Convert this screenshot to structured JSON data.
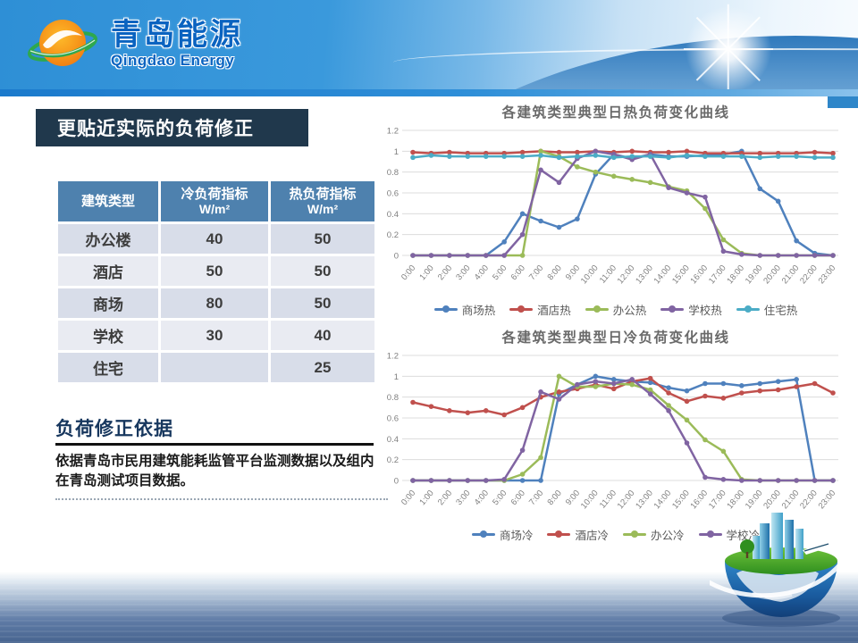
{
  "page_title": "更贴近实际的负荷修正",
  "banner": {
    "logo_title_zh": "青岛能源",
    "logo_title_en": "Qingdao Energy"
  },
  "left": {
    "section_title": "更贴近实际的负荷修正",
    "table": {
      "headers": [
        {
          "label": "建筑类型",
          "unit": ""
        },
        {
          "label": "冷负荷指标",
          "unit": "W/m²"
        },
        {
          "label": "热负荷指标",
          "unit": "W/m²"
        }
      ],
      "rows": [
        [
          "办公楼",
          "40",
          "50"
        ],
        [
          "酒店",
          "50",
          "50"
        ],
        [
          "商场",
          "80",
          "50"
        ],
        [
          "学校",
          "30",
          "40"
        ],
        [
          "住宅",
          "",
          "25"
        ]
      ]
    },
    "basis": {
      "heading": "负荷修正依据",
      "body": "依据青岛市民用建筑能耗监管平台监测数据以及组内在青岛测试项目数据。"
    }
  },
  "colors": {
    "blue": "#4F81BD",
    "red": "#C0504D",
    "green": "#9BBB59",
    "purple": "#8064A2",
    "cyan": "#4BACC6",
    "banner_blue": "#2E8FD6",
    "title_box": "#20384C",
    "table_header": "#4E81AE"
  },
  "chart_data": [
    {
      "type": "line",
      "title": "各建筑类型典型日热负荷变化曲线",
      "x": [
        "0:00",
        "1:00",
        "2:00",
        "3:00",
        "4:00",
        "5:00",
        "6:00",
        "7:00",
        "8:00",
        "9:00",
        "10:00",
        "11:00",
        "12:00",
        "13:00",
        "14:00",
        "15:00",
        "16:00",
        "17:00",
        "18:00",
        "19:00",
        "20:00",
        "21:00",
        "22:00",
        "23:00"
      ],
      "ylim": [
        0,
        1.2
      ],
      "yticks": [
        0,
        0.2,
        0.4,
        0.6,
        0.8,
        1,
        1.2
      ],
      "grid": true,
      "legend_position": "bottom",
      "series": [
        {
          "name": "商场热",
          "color": "#4F81BD",
          "values": [
            0,
            0,
            0,
            0,
            0,
            0.13,
            0.4,
            0.33,
            0.27,
            0.35,
            0.78,
            0.97,
            0.93,
            0.97,
            0.95,
            0.95,
            0.96,
            0.97,
            1.0,
            0.64,
            0.52,
            0.14,
            0.02,
            0
          ]
        },
        {
          "name": "酒店热",
          "color": "#C0504D",
          "values": [
            0.99,
            0.98,
            0.99,
            0.98,
            0.98,
            0.98,
            0.99,
            1.0,
            0.99,
            0.99,
            1.0,
            0.99,
            1.0,
            0.99,
            0.99,
            1.0,
            0.98,
            0.98,
            0.98,
            0.98,
            0.98,
            0.98,
            0.99,
            0.98
          ]
        },
        {
          "name": "办公热",
          "color": "#9BBB59",
          "values": [
            0,
            0,
            0,
            0,
            0,
            0,
            0,
            1.0,
            0.95,
            0.85,
            0.8,
            0.76,
            0.73,
            0.7,
            0.66,
            0.62,
            0.45,
            0.15,
            0.02,
            0,
            0,
            0,
            0,
            0
          ]
        },
        {
          "name": "学校热",
          "color": "#8064A2",
          "values": [
            0,
            0,
            0,
            0,
            0,
            0,
            0.2,
            0.82,
            0.7,
            0.93,
            1.0,
            0.97,
            0.92,
            0.97,
            0.65,
            0.6,
            0.56,
            0.04,
            0.01,
            0,
            0,
            0,
            0,
            0
          ]
        },
        {
          "name": "住宅热",
          "color": "#4BACC6",
          "values": [
            0.94,
            0.96,
            0.95,
            0.95,
            0.95,
            0.95,
            0.95,
            0.96,
            0.94,
            0.95,
            0.96,
            0.94,
            0.95,
            0.95,
            0.94,
            0.96,
            0.95,
            0.95,
            0.95,
            0.94,
            0.95,
            0.95,
            0.94,
            0.94
          ]
        }
      ]
    },
    {
      "type": "line",
      "title": "各建筑类型典型日冷负荷变化曲线",
      "x": [
        "0:00",
        "1:00",
        "2:00",
        "3:00",
        "4:00",
        "5:00",
        "6:00",
        "7:00",
        "8:00",
        "9:00",
        "10:00",
        "11:00",
        "12:00",
        "13:00",
        "14:00",
        "15:00",
        "16:00",
        "17:00",
        "18:00",
        "19:00",
        "20:00",
        "21:00",
        "22:00",
        "23:00"
      ],
      "ylim": [
        0,
        1.2
      ],
      "yticks": [
        0,
        0.2,
        0.4,
        0.6,
        0.8,
        1,
        1.2
      ],
      "grid": true,
      "legend_position": "bottom",
      "series": [
        {
          "name": "商场冷",
          "color": "#4F81BD",
          "values": [
            0,
            0,
            0,
            0,
            0,
            0,
            0,
            0,
            0.83,
            0.92,
            1.0,
            0.97,
            0.95,
            0.94,
            0.89,
            0.86,
            0.93,
            0.93,
            0.91,
            0.93,
            0.95,
            0.97,
            0,
            0
          ]
        },
        {
          "name": "酒店冷",
          "color": "#C0504D",
          "values": [
            0.75,
            0.71,
            0.67,
            0.65,
            0.67,
            0.63,
            0.7,
            0.8,
            0.85,
            0.88,
            0.92,
            0.88,
            0.95,
            0.98,
            0.84,
            0.76,
            0.81,
            0.79,
            0.84,
            0.86,
            0.87,
            0.9,
            0.93,
            0.84
          ]
        },
        {
          "name": "办公冷",
          "color": "#9BBB59",
          "values": [
            0,
            0,
            0,
            0,
            0,
            0,
            0.06,
            0.22,
            1.0,
            0.9,
            0.9,
            0.93,
            0.92,
            0.87,
            0.72,
            0.58,
            0.39,
            0.28,
            0.01,
            0,
            0,
            0,
            0,
            0
          ]
        },
        {
          "name": "学校冷",
          "color": "#8064A2",
          "values": [
            0,
            0,
            0,
            0,
            0,
            0.01,
            0.29,
            0.85,
            0.78,
            0.92,
            0.95,
            0.93,
            0.97,
            0.83,
            0.67,
            0.36,
            0.03,
            0.01,
            0,
            0,
            0,
            0,
            0,
            0
          ]
        }
      ]
    }
  ]
}
